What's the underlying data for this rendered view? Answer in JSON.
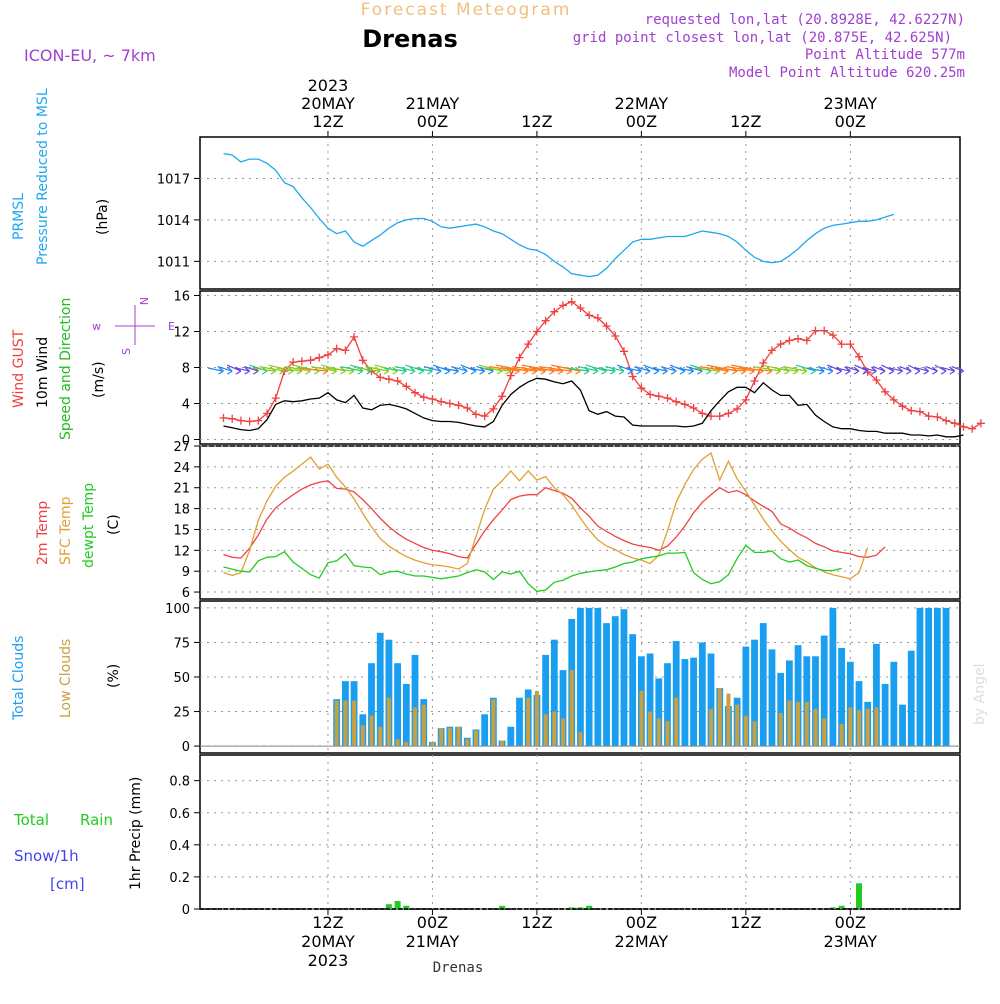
{
  "header": {
    "title": "Forecast Meteogram",
    "location": "Drenas",
    "model": "ICON-EU, ~ 7km",
    "requested": "requested lon,lat (20.8928E, 42.6227N)",
    "grid": "grid point closest lon,lat (20.875E, 42.625N)",
    "altitude": "Point Altitude 577m",
    "model_altitude": "Model Point Altitude 620.25m",
    "watermark": "by Angel",
    "footer": "Drenas"
  },
  "time_axis": {
    "top": [
      {
        "lines": [
          "2023",
          "20MAY",
          "12Z"
        ],
        "t": 12
      },
      {
        "lines": [
          "21MAY",
          "00Z"
        ],
        "t": 24
      },
      {
        "lines": [
          "12Z"
        ],
        "t": 36
      },
      {
        "lines": [
          "22MAY",
          "00Z"
        ],
        "t": 48
      },
      {
        "lines": [
          "12Z"
        ],
        "t": 60
      },
      {
        "lines": [
          "23MAY",
          "00Z"
        ],
        "t": 72
      }
    ],
    "bottom": [
      {
        "lines": [
          "12Z",
          "20MAY",
          "2023"
        ],
        "t": 12
      },
      {
        "lines": [
          "00Z",
          "21MAY"
        ],
        "t": 24
      },
      {
        "lines": [
          "12Z"
        ],
        "t": 36
      },
      {
        "lines": [
          "00Z",
          "22MAY"
        ],
        "t": 48
      },
      {
        "lines": [
          "12Z"
        ],
        "t": 60
      },
      {
        "lines": [
          "00Z",
          "23MAY"
        ],
        "t": 72
      }
    ]
  },
  "panel_labels": {
    "pressure": {
      "line1": "PRMSL",
      "line2": "Pressure Reduced to MSL",
      "unit": "(hPa)"
    },
    "wind": {
      "gust": "Wind GUST",
      "wind10m": "10m Wind",
      "speed_dir": "Speed and Direction",
      "unit": "(m/s)",
      "compass_w": "w",
      "compass_e": "E",
      "compass_n": "N",
      "compass_s": "S"
    },
    "temp": {
      "t2m": "2m Temp",
      "sfc": "SFC Temp",
      "dewpt": "dewpt Temp",
      "unit": "(C)"
    },
    "clouds": {
      "total": "Total Clouds",
      "low": "Low Clouds",
      "unit": "(%)"
    },
    "precip": {
      "total": "Total",
      "rain": "Rain",
      "snow": "Snow/1h",
      "snow_unit": "[cm]",
      "axis": "1hr Precip (mm)"
    }
  },
  "colors": {
    "pressure": "#1ea8f0",
    "gust": "#f04040",
    "wind10m": "#000000",
    "speed_dir": "#22bb22",
    "t2m": "#ee4444",
    "sfc": "#e0a030",
    "dewpt": "#22cc22",
    "total_clouds": "#1a9ef0",
    "low_clouds": "#c8a040",
    "rain": "#22cc22",
    "snow": "#4444ee",
    "title": "#f0c080",
    "model": "#a040d0",
    "info": "#a040d0"
  },
  "chart_data": [
    {
      "type": "line",
      "title": "PRMSL Pressure Reduced to MSL",
      "ylabel": "hPa",
      "ylim": [
        1009,
        1020
      ],
      "yticks": [
        1011,
        1014,
        1017
      ],
      "x_hours_start": 0,
      "x_step_hours": 1,
      "series": [
        {
          "name": "PRMSL",
          "values": [
            1018.8,
            1018.7,
            1018.2,
            1018.4,
            1018.4,
            1018.1,
            1017.6,
            1016.7,
            1016.4,
            1015.6,
            1014.9,
            1014.1,
            1013.4,
            1013.0,
            1013.2,
            1012.4,
            1012.1,
            1012.5,
            1012.9,
            1013.4,
            1013.8,
            1014.0,
            1014.1,
            1014.1,
            1013.9,
            1013.5,
            1013.4,
            1013.5,
            1013.6,
            1013.7,
            1013.5,
            1013.2,
            1013.0,
            1012.6,
            1012.2,
            1011.9,
            1011.8,
            1011.5,
            1011.0,
            1010.6,
            1010.1,
            1010.0,
            1009.9,
            1010.0,
            1010.5,
            1011.2,
            1011.8,
            1012.4,
            1012.6,
            1012.6,
            1012.7,
            1012.8,
            1012.8,
            1012.8,
            1013.0,
            1013.2,
            1013.1,
            1013.0,
            1012.8,
            1012.4,
            1011.8,
            1011.3,
            1011.0,
            1010.9,
            1011.0,
            1011.4,
            1011.9,
            1012.5,
            1013.0,
            1013.4,
            1013.6,
            1013.7,
            1013.8,
            1013.9,
            1013.9,
            1014.0,
            1014.2,
            1014.4
          ]
        }
      ]
    },
    {
      "type": "line",
      "title": "Wind GUST / 10m Wind Speed and Direction",
      "ylabel": "m/s",
      "ylim": [
        -0.5,
        16.5
      ],
      "yticks": [
        0,
        4,
        8,
        12,
        16
      ],
      "x_hours_start": 0,
      "x_step_hours": 1,
      "series": [
        {
          "name": "Wind GUST",
          "values": [
            2.4,
            2.3,
            2.1,
            2.0,
            2.1,
            2.9,
            4.6,
            7.6,
            8.6,
            8.7,
            8.8,
            9.1,
            9.4,
            10.1,
            9.9,
            11.4,
            8.8,
            7.6,
            6.9,
            6.7,
            6.5,
            5.9,
            5.2,
            4.7,
            4.5,
            4.2,
            4.0,
            3.8,
            3.5,
            2.8,
            2.6,
            3.4,
            4.8,
            7.1,
            9.1,
            10.6,
            12.0,
            13.2,
            14.2,
            14.9,
            15.3,
            14.6,
            13.8,
            13.5,
            12.6,
            11.5,
            9.8,
            7.0,
            5.7,
            5.0,
            4.8,
            4.6,
            4.2,
            3.9,
            3.5,
            2.9,
            2.6,
            2.6,
            2.9,
            3.4,
            4.4,
            6.5,
            8.5,
            9.9,
            10.6,
            11.0,
            11.2,
            11.0,
            12.1,
            12.1,
            11.6,
            10.6,
            10.6,
            9.2,
            7.5,
            6.6,
            5.3,
            4.4,
            3.7,
            3.2,
            3.1,
            2.6,
            2.5,
            2.1,
            1.8,
            1.4,
            1.2,
            1.8
          ]
        },
        {
          "name": "10m Wind",
          "values": [
            1.5,
            1.3,
            1.1,
            1.0,
            1.2,
            2.2,
            3.9,
            4.3,
            4.2,
            4.3,
            4.5,
            4.6,
            5.2,
            4.4,
            4.1,
            4.9,
            3.5,
            3.3,
            3.8,
            3.9,
            3.7,
            3.4,
            2.9,
            2.4,
            2.1,
            2.0,
            2.0,
            1.9,
            1.7,
            1.5,
            1.4,
            2.0,
            3.8,
            5.0,
            5.8,
            6.4,
            6.8,
            6.7,
            6.4,
            6.2,
            6.5,
            5.5,
            3.2,
            2.8,
            3.1,
            2.6,
            2.5,
            1.6,
            1.5,
            1.5,
            1.5,
            1.5,
            1.5,
            1.4,
            1.5,
            1.8,
            3.2,
            4.3,
            5.3,
            5.8,
            5.8,
            5.2,
            6.3,
            5.5,
            4.9,
            4.9,
            3.8,
            3.9,
            2.7,
            2.0,
            1.4,
            1.2,
            1.2,
            1.0,
            0.9,
            0.9,
            0.7,
            0.7,
            0.7,
            0.5,
            0.5,
            0.4,
            0.5,
            0.3,
            0.3,
            0.5
          ]
        }
      ],
      "wind_barbs": {
        "level": 7.6,
        "note": "10m wind direction arrows, mostly from the east/north-east"
      }
    },
    {
      "type": "line",
      "title": "2m Temp / SFC Temp / dewpt Temp",
      "ylabel": "C",
      "ylim": [
        5,
        27
      ],
      "yticks": [
        6,
        9,
        12,
        15,
        18,
        21,
        24,
        27
      ],
      "x_hours_start": 0,
      "x_step_hours": 1,
      "series": [
        {
          "name": "2m Temp",
          "values": [
            11.4,
            11.0,
            10.9,
            12.3,
            14.2,
            16.5,
            18.1,
            19.1,
            20.0,
            20.8,
            21.4,
            21.8,
            22.0,
            20.9,
            20.8,
            20.4,
            19.3,
            18.0,
            16.6,
            15.4,
            14.4,
            13.6,
            13.0,
            12.4,
            12.0,
            11.8,
            11.5,
            11.1,
            10.9,
            12.9,
            14.8,
            16.4,
            17.8,
            19.3,
            19.8,
            20.0,
            20.0,
            21.0,
            20.6,
            20.2,
            19.5,
            18.1,
            16.9,
            15.5,
            14.7,
            14.0,
            13.4,
            12.9,
            12.6,
            12.4,
            12.0,
            12.6,
            13.9,
            15.5,
            17.4,
            18.9,
            20.0,
            21.0,
            20.3,
            20.6,
            20.0,
            19.1,
            18.3,
            17.6,
            15.8,
            15.2,
            14.4,
            13.8,
            13.0,
            12.5,
            11.9,
            11.7,
            11.5,
            11.1,
            11.0,
            11.3,
            12.5
          ]
        },
        {
          "name": "SFC Temp",
          "values": [
            8.8,
            8.4,
            8.8,
            12.0,
            16.3,
            19.1,
            21.2,
            22.5,
            23.4,
            24.4,
            25.4,
            23.7,
            24.4,
            22.5,
            21.1,
            19.4,
            17.3,
            15.4,
            13.7,
            12.6,
            11.8,
            11.1,
            10.6,
            10.2,
            9.9,
            9.8,
            9.6,
            9.3,
            10.1,
            14.0,
            17.9,
            20.8,
            22.0,
            23.4,
            22.0,
            23.4,
            22.1,
            22.6,
            21.0,
            20.0,
            18.5,
            16.6,
            14.9,
            13.5,
            12.6,
            12.1,
            11.4,
            10.9,
            10.6,
            10.1,
            11.3,
            14.8,
            18.9,
            21.5,
            23.6,
            25.1,
            26.0,
            22.1,
            24.8,
            22.3,
            20.5,
            18.5,
            16.5,
            14.8,
            13.3,
            12.1,
            11.0,
            10.3,
            9.5,
            8.9,
            8.5,
            8.2,
            7.9,
            8.8,
            12.4
          ]
        },
        {
          "name": "dewpt Temp",
          "values": [
            9.6,
            9.3,
            9.0,
            8.9,
            10.5,
            11.0,
            11.1,
            11.8,
            10.3,
            9.4,
            8.5,
            8.0,
            10.2,
            10.5,
            11.5,
            9.8,
            9.6,
            9.5,
            8.5,
            8.9,
            9.0,
            8.6,
            8.3,
            8.3,
            8.1,
            7.9,
            8.1,
            8.3,
            8.8,
            9.2,
            8.9,
            7.8,
            8.9,
            8.6,
            9.0,
            7.2,
            6.1,
            6.3,
            7.4,
            7.7,
            8.3,
            8.7,
            8.9,
            9.1,
            9.2,
            9.6,
            10.1,
            10.3,
            10.8,
            11.0,
            11.2,
            11.6,
            11.6,
            11.7,
            8.8,
            7.8,
            7.2,
            7.5,
            8.5,
            10.8,
            12.7,
            11.7,
            11.7,
            11.9,
            10.8,
            10.3,
            10.6,
            9.8,
            9.4,
            9.1,
            9.1,
            9.4
          ]
        }
      ]
    },
    {
      "type": "bar",
      "title": "Total Clouds / Low Clouds",
      "ylabel": "%",
      "ylim": [
        -5,
        105
      ],
      "yticks": [
        0,
        25,
        50,
        75,
        100
      ],
      "x_hours_start": 0,
      "x_step_hours": 1,
      "series": [
        {
          "name": "Total Clouds",
          "values": [
            0,
            0,
            0,
            0,
            0,
            0,
            0,
            0,
            0,
            0,
            0,
            0,
            0,
            34,
            47,
            47,
            23,
            60,
            82,
            77,
            60,
            45,
            66,
            34,
            3,
            13,
            14,
            14,
            6,
            12,
            23,
            35,
            4,
            14,
            35,
            41,
            37,
            66,
            77,
            55,
            92,
            100,
            100,
            100,
            89,
            94,
            99,
            81,
            65,
            67,
            49,
            60,
            76,
            63,
            64,
            75,
            67,
            42,
            29,
            35,
            72,
            77,
            89,
            70,
            53,
            62,
            73,
            65,
            65,
            80,
            100,
            71,
            61,
            47,
            32,
            74,
            45,
            61,
            30,
            69,
            100,
            100,
            100,
            100
          ]
        },
        {
          "name": "Low Clouds",
          "values": [
            0,
            0,
            0,
            0,
            0,
            0,
            0,
            0,
            0,
            0,
            0,
            0,
            0,
            33,
            33,
            33,
            15,
            22,
            14,
            35,
            5,
            3,
            28,
            30,
            3,
            13,
            13,
            14,
            5,
            11,
            0,
            34,
            4,
            0,
            0,
            35,
            40,
            23,
            25,
            20,
            55,
            10,
            0,
            0,
            0,
            0,
            0,
            0,
            40,
            25,
            20,
            18,
            35,
            0,
            0,
            0,
            27,
            42,
            38,
            30,
            22,
            18,
            0,
            0,
            24,
            33,
            32,
            32,
            27,
            20,
            0,
            16,
            28,
            26,
            27,
            28,
            0,
            0,
            0,
            0,
            0,
            0,
            0
          ]
        }
      ]
    },
    {
      "type": "bar",
      "title": "1hr Precip (mm)",
      "ylabel": "1hr Precip (mm)",
      "ylim": [
        0,
        0.96
      ],
      "yticks": [
        0,
        0.2,
        0.4,
        0.6,
        0.8
      ],
      "x_hours_start": 0,
      "x_step_hours": 1,
      "series": [
        {
          "name": "Total Rain",
          "values": [
            0,
            0,
            0,
            0,
            0,
            0,
            0,
            0,
            0,
            0,
            0,
            0,
            0,
            0,
            0,
            0,
            0,
            0,
            0,
            0.03,
            0.05,
            0.02,
            0,
            0,
            0,
            0,
            0,
            0,
            0,
            0,
            0,
            0,
            0.02,
            0,
            0,
            0,
            0,
            0,
            0,
            0,
            0.01,
            0.01,
            0.02,
            0,
            0,
            0,
            0,
            0,
            0,
            0,
            0,
            0,
            0,
            0,
            0,
            0,
            0,
            0,
            0,
            0,
            0,
            0,
            0,
            0,
            0,
            0,
            0,
            0,
            0,
            0,
            0.01,
            0.02,
            0,
            0.16,
            0,
            0,
            0,
            0,
            0,
            0,
            0,
            0,
            0,
            0,
            0,
            0
          ]
        },
        {
          "name": "Snow/1h",
          "values": []
        }
      ]
    }
  ]
}
